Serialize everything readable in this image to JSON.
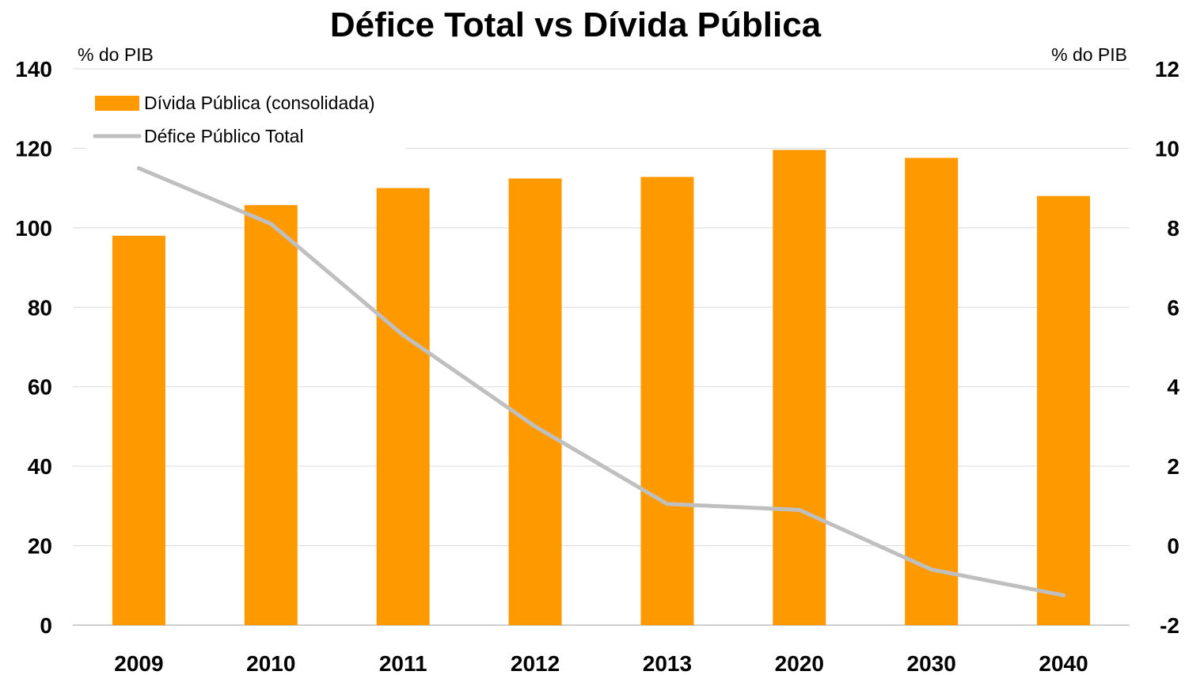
{
  "chart_data": {
    "type": "bar",
    "title": "Défice Total vs Dívida Pública",
    "categories": [
      "2009",
      "2010",
      "2011",
      "2012",
      "2013",
      "2020",
      "2030",
      "2040"
    ],
    "left_axis": {
      "label": "% do PIB",
      "ylim": [
        0,
        140
      ],
      "ticks": [
        0,
        20,
        40,
        60,
        80,
        100,
        120,
        140
      ]
    },
    "right_axis": {
      "label": "% do PIB",
      "ylim": [
        -2,
        12
      ],
      "ticks": [
        -2,
        0,
        2,
        4,
        6,
        8,
        10,
        12
      ]
    },
    "series": [
      {
        "name": "Dívida Pública (consolidada)",
        "type": "bar",
        "axis": "left",
        "color": "#FF9900",
        "values": [
          98,
          105.7,
          110,
          112.4,
          112.8,
          119.6,
          117.6,
          108
        ]
      },
      {
        "name": "Défice Público Total",
        "type": "line",
        "axis": "right",
        "color": "#BFBFBF",
        "values": [
          9.5,
          8.1,
          5.3,
          3.0,
          1.05,
          0.9,
          -0.6,
          -1.25
        ]
      }
    ],
    "grid": true,
    "legend_position": "top-left"
  }
}
